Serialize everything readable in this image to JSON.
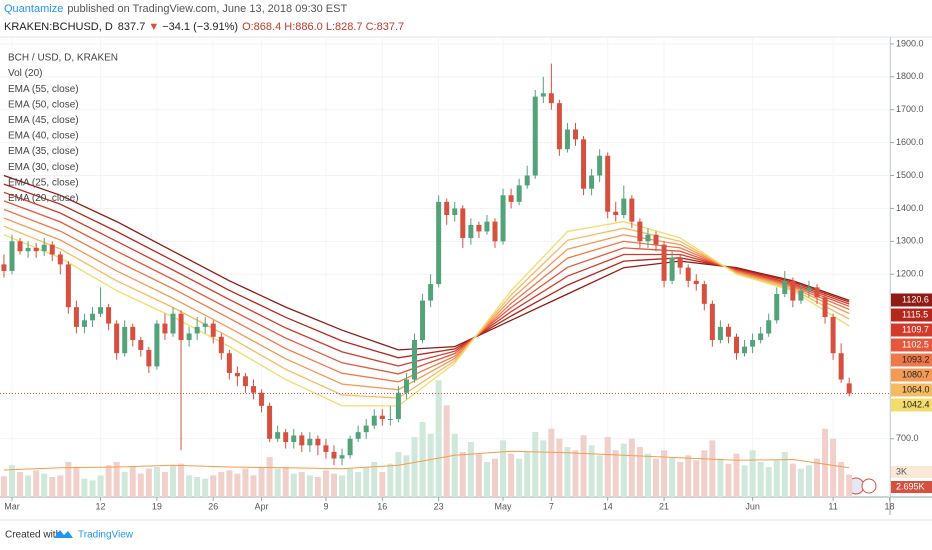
{
  "header": {
    "author": "Quantamize",
    "published": "published on TradingView.com, June 13, 2018 09:30 EST",
    "symbol": "KRAKEN:BCHUSD, D",
    "last": "837.7",
    "arrow": "▼",
    "change": "−34.1 (−3.91%)",
    "ohlc": "O:868.4 H:886.0 L:828.7 C:837.7"
  },
  "footer": {
    "created": "Created with",
    "brand": "TradingView"
  },
  "chart_data": {
    "type": "candlestick",
    "legend_title": "BCH / USD, D, KRAKEN",
    "up_color": "#53a27a",
    "down_color": "#d6503f",
    "categories": [
      null,
      "Mar",
      null,
      null,
      null,
      null,
      null,
      null,
      null,
      null,
      null,
      null,
      "12",
      null,
      null,
      null,
      null,
      null,
      null,
      "19",
      null,
      null,
      null,
      null,
      null,
      null,
      "26",
      null,
      null,
      null,
      null,
      null,
      "Apr",
      null,
      null,
      null,
      null,
      null,
      null,
      null,
      "9",
      null,
      null,
      null,
      null,
      null,
      null,
      "16",
      null,
      null,
      null,
      null,
      null,
      null,
      "23",
      null,
      null,
      null,
      null,
      null,
      null,
      null,
      "May",
      null,
      null,
      null,
      null,
      null,
      "7",
      null,
      null,
      null,
      null,
      null,
      null,
      "14",
      null,
      null,
      null,
      null,
      null,
      null,
      "21",
      null,
      null,
      null,
      null,
      null,
      null,
      null,
      null,
      null,
      null,
      "Jun",
      null,
      null,
      null,
      null,
      null,
      null,
      null,
      null,
      null,
      "11",
      null,
      null,
      null,
      null,
      null,
      null,
      "18"
    ],
    "open": [
      1230,
      1210,
      1300,
      1270,
      1280,
      1270,
      1290,
      1260,
      1230,
      1100,
      1040,
      1060,
      1080,
      1100,
      1050,
      960,
      1040,
      1000,
      970,
      920,
      1050,
      1020,
      1080,
      1000,
      1020,
      1040,
      1050,
      1010,
      960,
      900,
      890,
      860,
      840,
      800,
      700,
      720,
      690,
      710,
      680,
      700,
      680,
      660,
      640,
      650,
      700,
      720,
      740,
      770,
      760,
      760,
      840,
      880,
      1000,
      1120,
      1170,
      1420,
      1380,
      1400,
      1310,
      1350,
      1330,
      1360,
      1300,
      1440,
      1420,
      1470,
      1500,
      1740,
      1750,
      1720,
      1580,
      1640,
      1610,
      1460,
      1500,
      1560,
      1390,
      1380,
      1430,
      1360,
      1300,
      1320,
      1290,
      1180,
      1250,
      1220,
      1180,
      1170,
      1110,
      1000,
      1040,
      1010,
      960,
      980,
      1000,
      1020,
      1060,
      1140,
      1180,
      1120,
      1150,
      1160,
      1130,
      1070,
      960,
      868.4,
      null,
      null,
      null,
      null,
      null
    ],
    "high": [
      1260,
      1320,
      1310,
      1300,
      1295,
      1310,
      1300,
      1270,
      1240,
      1120,
      1080,
      1100,
      1160,
      1110,
      1060,
      1060,
      1050,
      1010,
      980,
      1060,
      1080,
      1100,
      1090,
      1040,
      1070,
      1070,
      1060,
      1020,
      970,
      920,
      900,
      880,
      850,
      810,
      740,
      730,
      730,
      720,
      720,
      710,
      700,
      680,
      670,
      710,
      740,
      760,
      790,
      790,
      800,
      860,
      900,
      1020,
      1140,
      1200,
      1440,
      1430,
      1420,
      1410,
      1370,
      1360,
      1380,
      1370,
      1460,
      1460,
      1490,
      1530,
      1760,
      1800,
      1840,
      1730,
      1660,
      1660,
      1620,
      1520,
      1580,
      1570,
      1420,
      1470,
      1440,
      1370,
      1340,
      1330,
      1300,
      1270,
      1260,
      1230,
      1200,
      1180,
      1120,
      1060,
      1050,
      1020,
      1000,
      1020,
      1040,
      1080,
      1160,
      1210,
      1190,
      1170,
      1180,
      1170,
      1140,
      1080,
      990,
      886,
      null,
      null,
      null,
      null,
      null
    ],
    "low": [
      1190,
      1200,
      1260,
      1250,
      1250,
      1255,
      1240,
      1200,
      1080,
      1020,
      1020,
      1040,
      1070,
      1030,
      940,
      950,
      980,
      950,
      900,
      910,
      1000,
      1010,
      665,
      980,
      1000,
      1020,
      990,
      940,
      880,
      860,
      840,
      820,
      780,
      690,
      690,
      670,
      670,
      660,
      660,
      650,
      640,
      620,
      620,
      640,
      690,
      700,
      730,
      740,
      740,
      750,
      820,
      870,
      990,
      1100,
      1160,
      1350,
      1360,
      1280,
      1290,
      1310,
      1320,
      1280,
      1290,
      1400,
      1410,
      1460,
      1490,
      1720,
      1700,
      1560,
      1570,
      1590,
      1440,
      1440,
      1480,
      1370,
      1360,
      1370,
      1340,
      1280,
      1280,
      1270,
      1160,
      1170,
      1200,
      1160,
      1150,
      1090,
      980,
      990,
      990,
      940,
      950,
      960,
      990,
      1010,
      1050,
      1130,
      1100,
      1110,
      1130,
      1110,
      1050,
      940,
      870,
      828.7,
      null,
      null,
      null,
      null,
      null
    ],
    "close": [
      1210,
      1300,
      1270,
      1280,
      1270,
      1290,
      1260,
      1230,
      1100,
      1040,
      1060,
      1080,
      1100,
      1050,
      960,
      1040,
      1000,
      970,
      920,
      1050,
      1020,
      1080,
      1000,
      1020,
      1040,
      1050,
      1010,
      960,
      900,
      890,
      860,
      840,
      800,
      700,
      720,
      690,
      710,
      680,
      700,
      680,
      660,
      640,
      650,
      700,
      720,
      740,
      770,
      760,
      760,
      840,
      880,
      1000,
      1120,
      1170,
      1420,
      1380,
      1400,
      1310,
      1350,
      1330,
      1360,
      1300,
      1440,
      1420,
      1470,
      1500,
      1740,
      1750,
      1720,
      1580,
      1640,
      1610,
      1460,
      1500,
      1560,
      1390,
      1380,
      1430,
      1360,
      1300,
      1320,
      1290,
      1180,
      1250,
      1220,
      1180,
      1170,
      1110,
      1000,
      1040,
      1010,
      960,
      980,
      1000,
      1020,
      1060,
      1140,
      1180,
      1120,
      1150,
      1160,
      1130,
      1070,
      960,
      880,
      837.7,
      null,
      null,
      null,
      null,
      null
    ],
    "ylim": [
      523,
      1921
    ],
    "yticks": [
      {
        "value": 1900,
        "label": "1900.0"
      },
      {
        "value": 1800,
        "label": "1800.0"
      },
      {
        "value": 1700,
        "label": "1700.0"
      },
      {
        "value": 1600,
        "label": "1600.0"
      },
      {
        "value": 1500,
        "label": "1500.0"
      },
      {
        "value": 1400,
        "label": "1400.0"
      },
      {
        "value": 1300,
        "label": "1300.0"
      },
      {
        "value": 1200,
        "label": "1200.0"
      },
      {
        "value": 700,
        "label": "700.0"
      }
    ],
    "grid": true,
    "volume": {
      "name": "Vol (20)",
      "up_color": "#cfe8da",
      "down_color": "#f1d0cb",
      "ma_color": "#f39c4f",
      "values": [
        2500,
        3800,
        3000,
        2600,
        3200,
        2800,
        2400,
        2600,
        4200,
        3600,
        2200,
        2000,
        2600,
        3800,
        4200,
        3000,
        3600,
        2800,
        3400,
        3600,
        3000,
        3800,
        4000,
        2600,
        2400,
        2200,
        2600,
        3000,
        3200,
        2800,
        3400,
        2600,
        3600,
        4800,
        3400,
        3600,
        2800,
        3000,
        2600,
        2400,
        3200,
        2800,
        2600,
        3400,
        3000,
        3600,
        4200,
        3000,
        4000,
        5400,
        5000,
        7200,
        9000,
        7600,
        14000,
        11000,
        7600,
        5400,
        6600,
        5200,
        4200,
        4600,
        6800,
        5200,
        4600,
        5400,
        7800,
        6800,
        8200,
        7000,
        6000,
        5600,
        7400,
        6200,
        5000,
        7200,
        5600,
        6400,
        7000,
        6000,
        5200,
        4600,
        5600,
        4800,
        4200,
        5000,
        4400,
        5600,
        6800,
        4600,
        4000,
        5200,
        3800,
        5600,
        4200,
        3600,
        4400,
        5400,
        4000,
        3400,
        3800,
        4600,
        8200,
        7000,
        4200,
        2695,
        null,
        null,
        null,
        null,
        null
      ],
      "value_labels": [
        null,
        null,
        null,
        null,
        null,
        null,
        null,
        null,
        null,
        null,
        null,
        null,
        null,
        null,
        null,
        null,
        null,
        null,
        null,
        null,
        null,
        null,
        null,
        null,
        null,
        null,
        null,
        null,
        null,
        null,
        null,
        null,
        null,
        null,
        null,
        null,
        null,
        null,
        null,
        null,
        null,
        null,
        null,
        null,
        null,
        null,
        null,
        null,
        null,
        null,
        null,
        null,
        null,
        null,
        null,
        null,
        null,
        null,
        null,
        null,
        null,
        null,
        null,
        null,
        null,
        null,
        null,
        null,
        null,
        null,
        null,
        null,
        null,
        null,
        null,
        null,
        null,
        null,
        null,
        null,
        null,
        null,
        null,
        null,
        null,
        null,
        null,
        null,
        null,
        null,
        null,
        null,
        null,
        null,
        null,
        null,
        null,
        null,
        null,
        null,
        null,
        null,
        null,
        null,
        null,
        "2.695K",
        null,
        null,
        null,
        null,
        null
      ],
      "ma_x": [
        0,
        7,
        14,
        21,
        28,
        35,
        42,
        49,
        56,
        63,
        70,
        77,
        84,
        91,
        98,
        105
      ],
      "ma_values": [
        3240,
        3500,
        3600,
        3800,
        3600,
        3500,
        3400,
        3800,
        5000,
        5500,
        5300,
        5000,
        4700,
        4400,
        4500,
        3500
      ],
      "ylim": [
        0,
        55200
      ],
      "yticks": [
        {
          "value": 3000,
          "label": "3K"
        }
      ]
    },
    "ema": {
      "x": [
        0,
        7,
        14,
        21,
        28,
        35,
        42,
        49,
        56,
        63,
        70,
        77,
        84,
        91,
        98,
        105
      ],
      "series": [
        {
          "name": "EMA (55, close)",
          "color": "#8e1b14",
          "values": [
            1500,
            1440,
            1360,
            1270,
            1180,
            1100,
            1030,
            970,
            980,
            1060,
            1140,
            1220,
            1240,
            1220,
            1180,
            1120.6
          ],
          "value_labels": [
            null,
            null,
            null,
            null,
            null,
            null,
            null,
            null,
            null,
            null,
            null,
            null,
            null,
            null,
            null,
            "1120.6"
          ]
        },
        {
          "name": "EMA (50, close)",
          "color": "#b5271c",
          "values": [
            1474,
            1413,
            1330,
            1241,
            1151,
            1069,
            997,
            946,
            973,
            1073,
            1167,
            1240,
            1250,
            1217,
            1176,
            1115.5
          ],
          "value_labels": [
            null,
            null,
            null,
            null,
            null,
            null,
            null,
            null,
            null,
            null,
            null,
            null,
            null,
            null,
            null,
            "1115.5"
          ]
        },
        {
          "name": "EMA (45, close)",
          "color": "#d23b2c",
          "values": [
            1449,
            1386,
            1300,
            1213,
            1123,
            1037,
            964,
            921,
            966,
            1086,
            1194,
            1260,
            1260,
            1214,
            1171,
            1109.7
          ],
          "value_labels": [
            null,
            null,
            null,
            null,
            null,
            null,
            null,
            null,
            null,
            null,
            null,
            null,
            null,
            null,
            null,
            "1109.7"
          ]
        },
        {
          "name": "EMA (40, close)",
          "color": "#e4583d",
          "values": [
            1423,
            1359,
            1270,
            1184,
            1094,
            1006,
            931,
            897,
            959,
            1099,
            1221,
            1280,
            1270,
            1211,
            1167,
            1102.5
          ],
          "value_labels": [
            null,
            null,
            null,
            null,
            null,
            null,
            null,
            null,
            null,
            null,
            null,
            null,
            null,
            null,
            null,
            "1102.5"
          ]
        },
        {
          "name": "EMA (35, close)",
          "color": "#ee784a",
          "values": [
            1397,
            1331,
            1240,
            1156,
            1066,
            974,
            899,
            873,
            951,
            1111,
            1249,
            1300,
            1280,
            1209,
            1163,
            1093.2
          ],
          "value_labels": [
            null,
            null,
            null,
            null,
            null,
            null,
            null,
            null,
            null,
            null,
            null,
            null,
            null,
            null,
            null,
            "1093.2"
          ]
        },
        {
          "name": "EMA (30, close)",
          "color": "#f39a56",
          "values": [
            1371,
            1304,
            1210,
            1127,
            1037,
            943,
            866,
            849,
            944,
            1124,
            1276,
            1320,
            1290,
            1206,
            1159,
            1080.7
          ],
          "value_labels": [
            null,
            null,
            null,
            null,
            null,
            null,
            null,
            null,
            null,
            null,
            null,
            null,
            null,
            null,
            null,
            "1080.7"
          ]
        },
        {
          "name": "EMA (25, close)",
          "color": "#f5bb62",
          "values": [
            1346,
            1277,
            1180,
            1099,
            1009,
            911,
            833,
            824,
            937,
            1137,
            1303,
            1340,
            1300,
            1203,
            1154,
            1064
          ],
          "value_labels": [
            null,
            null,
            null,
            null,
            null,
            null,
            null,
            null,
            null,
            null,
            null,
            null,
            null,
            null,
            null,
            "1064.0"
          ]
        },
        {
          "name": "EMA (20, close)",
          "color": "#f2dc6c",
          "values": [
            1320,
            1250,
            1150,
            1070,
            980,
            880,
            800,
            800,
            930,
            1150,
            1330,
            1360,
            1310,
            1200,
            1150,
            1042.4
          ],
          "value_labels": [
            null,
            null,
            null,
            null,
            null,
            null,
            null,
            null,
            null,
            null,
            null,
            null,
            null,
            null,
            null,
            "1042.4"
          ]
        }
      ]
    }
  }
}
